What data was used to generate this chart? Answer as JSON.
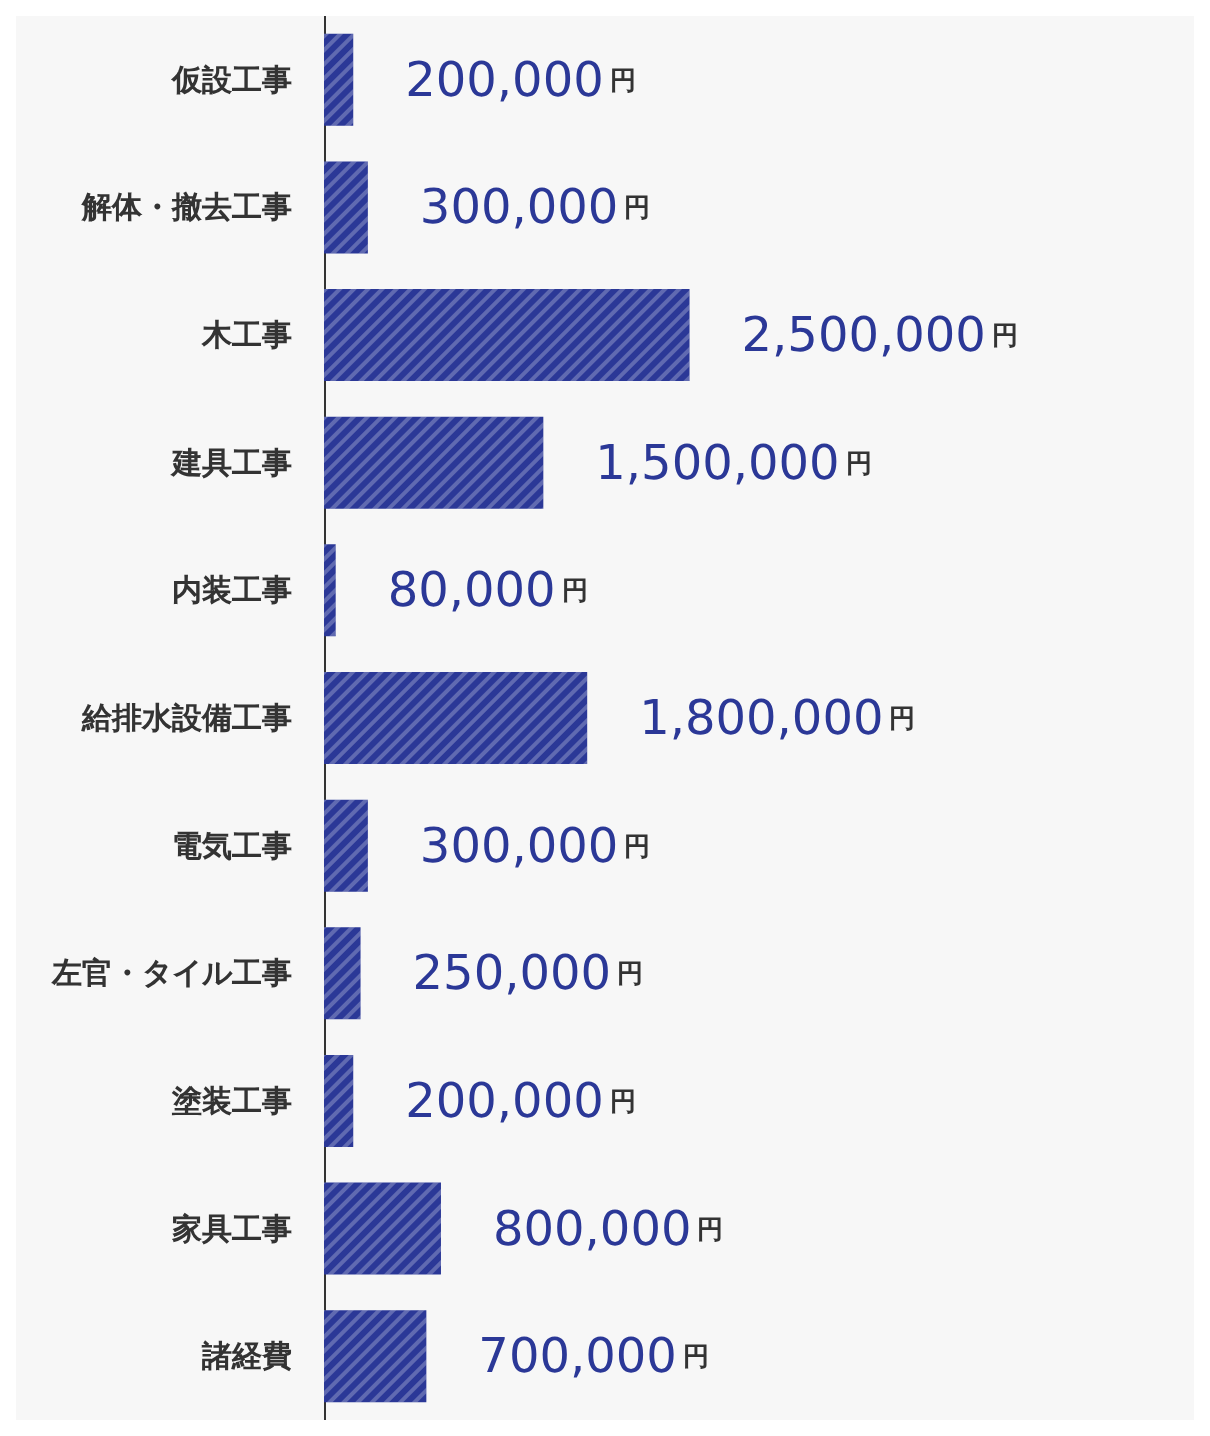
{
  "chart_data": {
    "type": "bar",
    "orientation": "horizontal",
    "categories": [
      "仮設工事",
      "解体・撤去工事",
      "木工事",
      "建具工事",
      "内装工事",
      "給排水設備工事",
      "電気工事",
      "左官・タイル工事",
      "塗装工事",
      "家具工事",
      "諸経費"
    ],
    "values": [
      200000,
      300000,
      2500000,
      1500000,
      80000,
      1800000,
      300000,
      250000,
      200000,
      800000,
      700000
    ],
    "value_labels": [
      "200,000円",
      "300,000円",
      "2,500,000円",
      "1,500,000円",
      "80,000円",
      "1,800,000円",
      "300,000円",
      "250,000円",
      "200,000円",
      "800,000円",
      "700,000円"
    ],
    "color": "#2b3897",
    "grid": false,
    "tick_labels": "y"
  }
}
